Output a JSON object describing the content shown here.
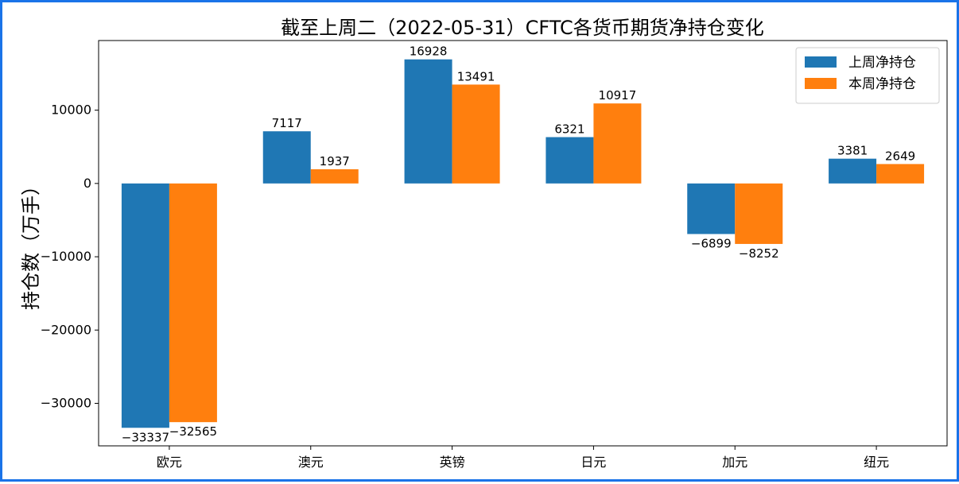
{
  "chart_data": {
    "type": "bar",
    "title": "截至上周二（2022-05-31）CFTC各货币期货净持仓变化",
    "xlabel": "",
    "ylabel": "持仓数（万手）",
    "categories": [
      "欧元",
      "澳元",
      "英镑",
      "日元",
      "加元",
      "纽元"
    ],
    "series": [
      {
        "name": "上周净持仓",
        "color": "#1f77b4",
        "values": [
          -33337,
          7117,
          16928,
          6321,
          -6899,
          3381
        ]
      },
      {
        "name": "本周净持仓",
        "color": "#ff7f0e",
        "values": [
          -32565,
          1937,
          13491,
          10917,
          -8252,
          2649
        ]
      }
    ],
    "ylim": [
      -35800,
      19500
    ],
    "yticks": [
      -30000,
      -20000,
      -10000,
      0,
      10000
    ],
    "grid": false,
    "legend_position": "top-right"
  }
}
